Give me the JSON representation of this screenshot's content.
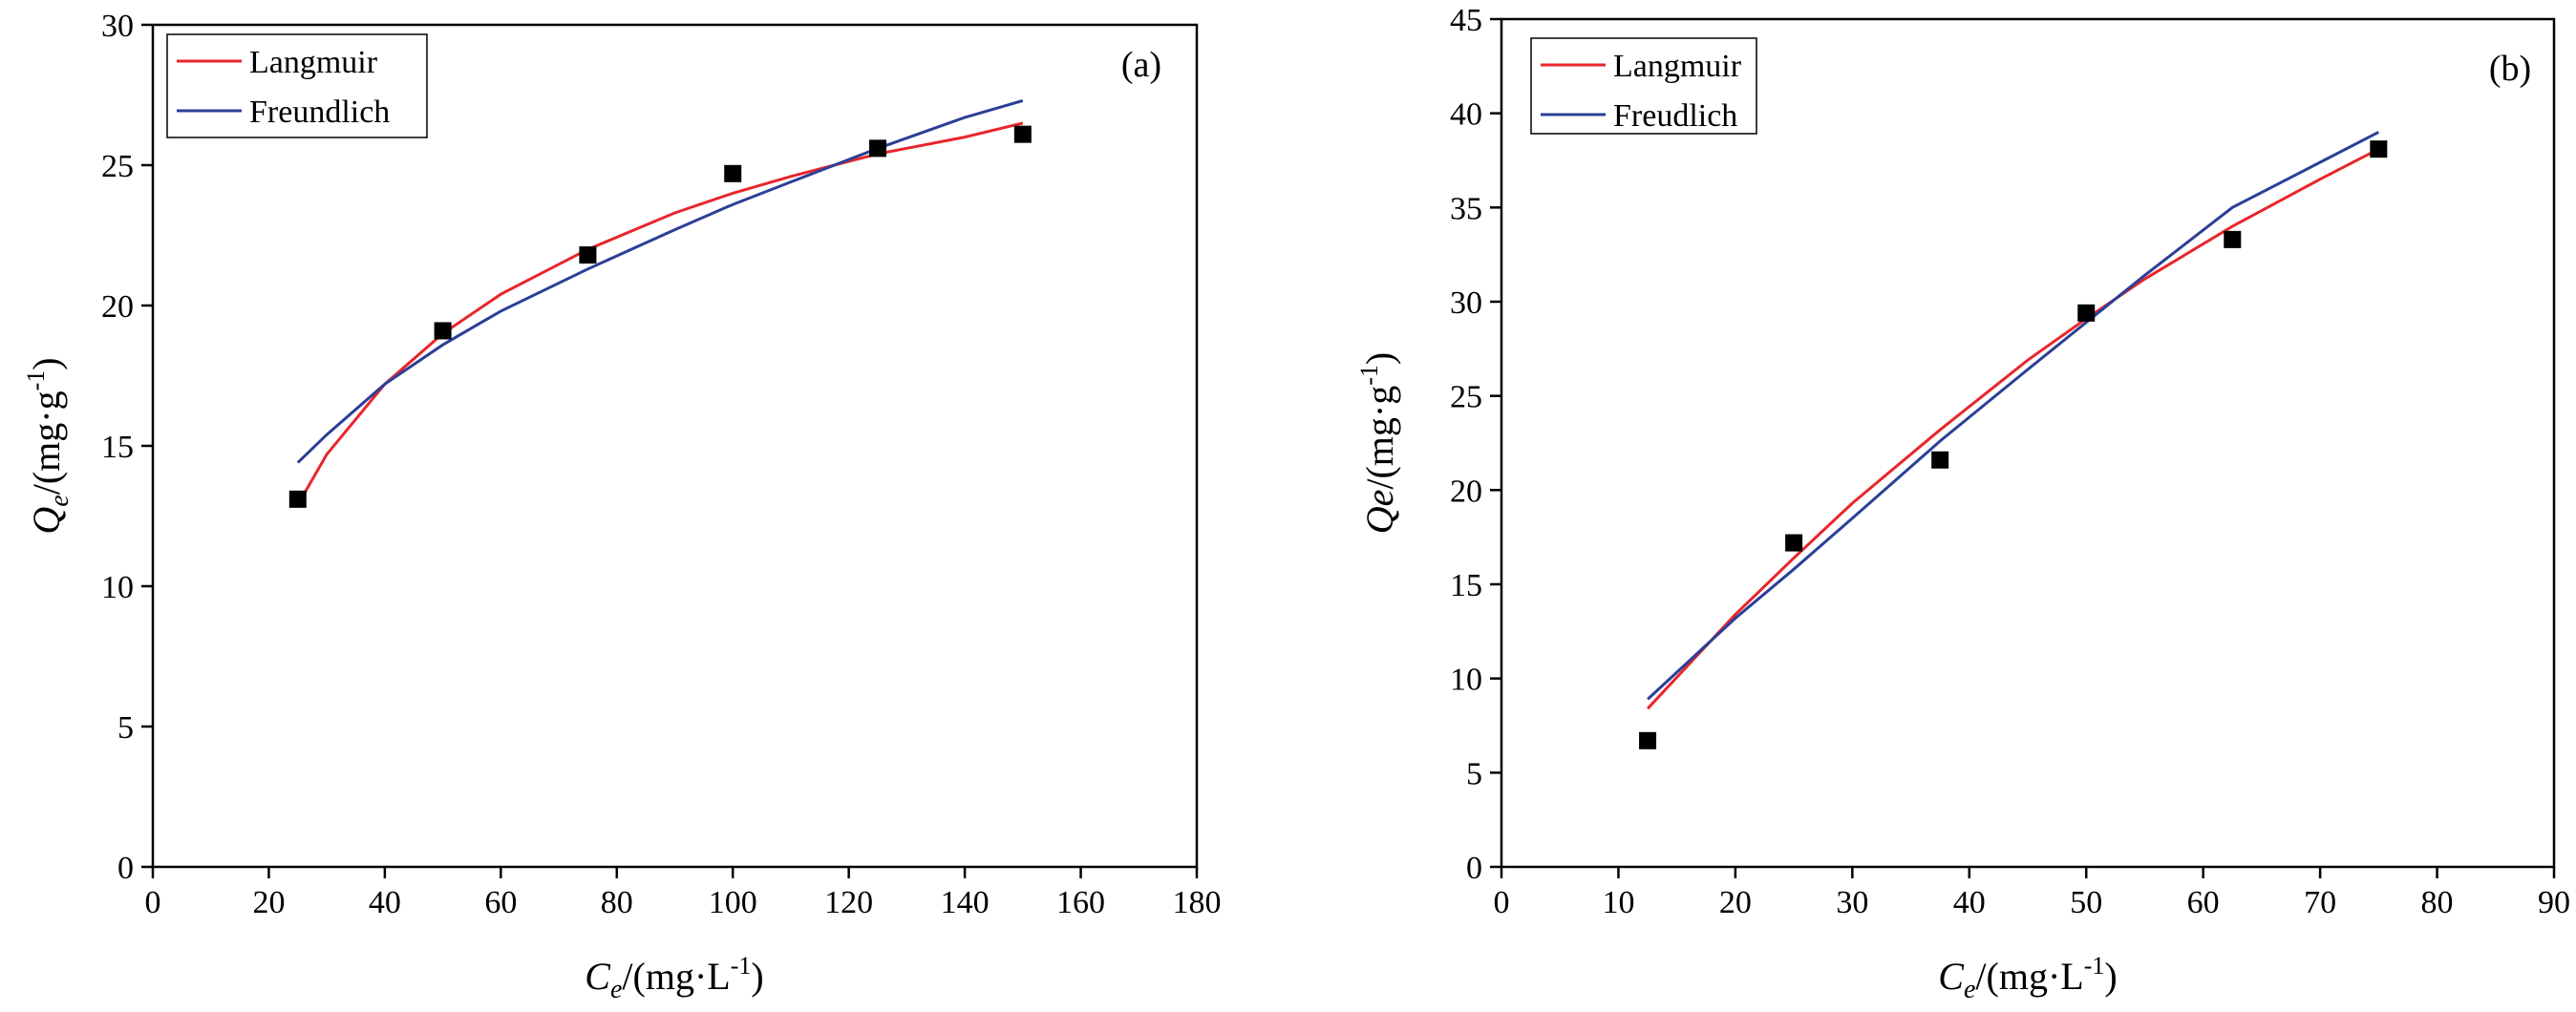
{
  "chart_data": [
    {
      "type": "scatter",
      "panel_label": "(a)",
      "xlabel": {
        "base": "C",
        "sub": "e",
        "rest": "/(mg·L",
        "sup": "-1",
        "end": ")"
      },
      "ylabel": {
        "base": "Q",
        "sub": "e",
        "rest": "/(mg·g",
        "sup": "-1",
        "end": ")"
      },
      "xlim": [
        0,
        180
      ],
      "ylim": [
        0,
        30
      ],
      "xticks": [
        0,
        20,
        40,
        60,
        80,
        100,
        120,
        140,
        160,
        180
      ],
      "yticks": [
        0,
        5,
        10,
        15,
        20,
        25,
        30
      ],
      "grid": false,
      "legend_position": "top-left",
      "points": {
        "x": [
          25,
          50,
          75,
          100,
          125,
          150
        ],
        "y": [
          13.1,
          19.1,
          21.8,
          24.7,
          25.6,
          26.1
        ],
        "color": "#000000"
      },
      "series": [
        {
          "name": "Langmuir",
          "color": "#e8262b",
          "x": [
            25,
            30,
            40,
            50,
            60,
            75,
            90,
            100,
            110,
            125,
            140,
            150
          ],
          "y": [
            12.9,
            14.7,
            17.2,
            19.0,
            20.4,
            22.0,
            23.3,
            24.0,
            24.6,
            25.4,
            26.0,
            26.5
          ]
        },
        {
          "name": "Freundlich",
          "color": "#2b3f96",
          "x": [
            25,
            30,
            40,
            50,
            60,
            75,
            90,
            100,
            110,
            125,
            140,
            150
          ],
          "y": [
            14.4,
            15.4,
            17.2,
            18.6,
            19.8,
            21.3,
            22.7,
            23.6,
            24.4,
            25.6,
            26.7,
            27.3
          ]
        }
      ]
    },
    {
      "type": "scatter",
      "panel_label": "(b)",
      "xlabel": {
        "base": "C",
        "sub": "e",
        "rest": "/(mg·L",
        "sup": "-1",
        "end": ")"
      },
      "ylabel": {
        "base": "Qe",
        "sub": "",
        "rest": "/(mg·g",
        "sup": "-1",
        "end": ")"
      },
      "xlim": [
        0,
        90
      ],
      "ylim": [
        0,
        45
      ],
      "xticks": [
        0,
        10,
        20,
        30,
        40,
        50,
        60,
        70,
        80,
        90
      ],
      "yticks": [
        0,
        5,
        10,
        15,
        20,
        25,
        30,
        35,
        40,
        45
      ],
      "grid": false,
      "legend_position": "top-left",
      "points": {
        "x": [
          12.5,
          25,
          37.5,
          50,
          62.5,
          75
        ],
        "y": [
          6.7,
          17.2,
          21.6,
          29.4,
          33.3,
          38.1
        ],
        "color": "#000000"
      },
      "series": [
        {
          "name": "Langmuir",
          "color": "#e8262b",
          "x": [
            12.5,
            20,
            25,
            30,
            37.5,
            45,
            50,
            55,
            62.5,
            70,
            75
          ],
          "y": [
            8.4,
            13.4,
            16.4,
            19.3,
            23.2,
            26.9,
            29.1,
            31.2,
            34.0,
            36.5,
            38.1
          ]
        },
        {
          "name": "Freudlich",
          "color": "#2b3f96",
          "x": [
            12.5,
            20,
            25,
            30,
            37.5,
            45,
            50,
            55,
            62.5,
            70,
            75
          ],
          "y": [
            8.9,
            13.2,
            15.8,
            18.5,
            22.6,
            26.4,
            28.9,
            31.4,
            35.0,
            37.4,
            39.0
          ]
        }
      ]
    }
  ]
}
